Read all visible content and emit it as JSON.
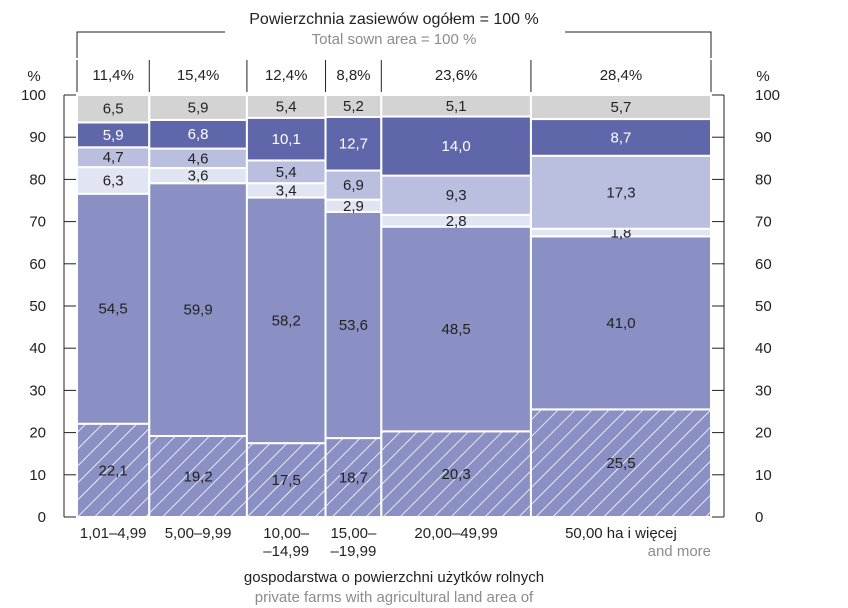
{
  "chart_data": {
    "type": "bar",
    "subtype": "stacked-100-variable-width",
    "title": "Powierzchnia zasiewów ogółem = 100 %",
    "subtitle": "Total sown area = 100 %",
    "xlabel": "gospodarstwa o powierzchni użytków rolnych",
    "xlabel_en": "private farms with agricultural land area of",
    "ylabel_left": "%",
    "ylabel_right": "%",
    "ylim": [
      0,
      100
    ],
    "yticks": [
      "0",
      "10",
      "20",
      "30",
      "40",
      "50",
      "60",
      "70",
      "80",
      "90",
      "100"
    ],
    "grid": false,
    "categories": [
      {
        "line1": "1,01–4,99",
        "line2": "",
        "line3": "",
        "share": 11.4,
        "share_label": "11,4%"
      },
      {
        "line1": "5,00–9,99",
        "line2": "",
        "line3": "",
        "share": 15.4,
        "share_label": "15,4%"
      },
      {
        "line1": "10,00–",
        "line2": "–14,99",
        "line3": "",
        "share": 12.4,
        "share_label": "12,4%"
      },
      {
        "line1": "15,00–",
        "line2": "–19,99",
        "line3": "",
        "share": 8.8,
        "share_label": "8,8%"
      },
      {
        "line1": "20,00–49,99",
        "line2": "",
        "line3": "",
        "share": 23.6,
        "share_label": "23,6%"
      },
      {
        "line1": "50,00 ha i więcej",
        "line2": "",
        "line3": "and more",
        "share": 28.4,
        "share_label": "28,4%"
      }
    ],
    "series": [
      {
        "color": "#8a90c3",
        "pattern": "hatch",
        "values": [
          22.1,
          19.2,
          17.5,
          18.7,
          20.3,
          25.5
        ],
        "labels": [
          "22,1",
          "19,2",
          "17,5",
          "18,7",
          "20,3",
          "25,5"
        ],
        "label_color": "#222222"
      },
      {
        "color": "#8a90c3",
        "pattern": "solid",
        "values": [
          54.5,
          59.9,
          58.2,
          53.6,
          48.5,
          41.0
        ],
        "labels": [
          "54,5",
          "59,9",
          "58,2",
          "53,6",
          "48,5",
          "41,0"
        ],
        "label_color": "#222222"
      },
      {
        "color": "#e1e4f3",
        "pattern": "solid",
        "values": [
          6.3,
          3.6,
          3.4,
          2.9,
          2.8,
          1.8
        ],
        "labels": [
          "6,3",
          "3,6",
          "3,4",
          "2,9",
          "2,8",
          "1,8"
        ],
        "label_color": "#222222"
      },
      {
        "color": "#babfdf",
        "pattern": "solid",
        "values": [
          4.7,
          4.6,
          5.4,
          6.9,
          9.3,
          17.3
        ],
        "labels": [
          "4,7",
          "4,6",
          "5,4",
          "6,9",
          "9,3",
          "17,3"
        ],
        "label_color": "#222222"
      },
      {
        "color": "#5f67aa",
        "pattern": "solid",
        "values": [
          5.9,
          6.8,
          10.1,
          12.7,
          14.0,
          8.7
        ],
        "labels": [
          "5,9",
          "6,8",
          "10,1",
          "12,7",
          "14,0",
          "8,7"
        ],
        "label_color": "#ffffff"
      },
      {
        "color": "#d3d3d3",
        "pattern": "solid",
        "values": [
          6.5,
          5.9,
          5.4,
          5.2,
          5.1,
          5.7
        ],
        "labels": [
          "6,5",
          "5,9",
          "5,4",
          "5,2",
          "5,1",
          "5,7"
        ],
        "label_color": "#222222"
      }
    ],
    "colors": {
      "axis": "#222222",
      "subtitle": "#8c8c8c",
      "hatch_line": "#ffffff"
    }
  }
}
